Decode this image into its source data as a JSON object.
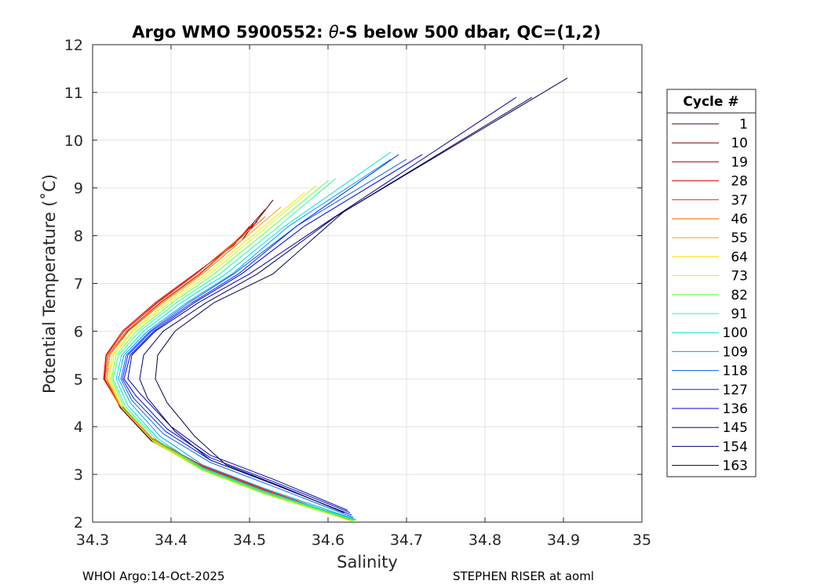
{
  "chart_data": {
    "type": "line",
    "title_prefix": "Argo WMO 5900552: ",
    "title_symbol": "θ",
    "title_suffix": "-S below 500 dbar,  QC=(1,2)",
    "xlabel": "Salinity",
    "ylabel": "Potential Temperature (˚C)",
    "xlim": [
      34.3,
      35.0
    ],
    "ylim": [
      2,
      12
    ],
    "xticks": [
      "34.3",
      "34.4",
      "34.5",
      "34.6",
      "34.7",
      "34.8",
      "34.9",
      "35"
    ],
    "yticks": [
      "2",
      "3",
      "4",
      "5",
      "6",
      "7",
      "8",
      "9",
      "10",
      "11",
      "12"
    ],
    "grid": true,
    "legend_title": "Cycle #",
    "legend_position": "right",
    "series": [
      {
        "name": "1",
        "color": "#5a0000",
        "values": [
          [
            34.634,
            2.05
          ],
          [
            34.52,
            2.6
          ],
          [
            34.44,
            3.1
          ],
          [
            34.375,
            3.7
          ],
          [
            34.335,
            4.4
          ],
          [
            34.318,
            5.0
          ],
          [
            34.322,
            5.5
          ],
          [
            34.345,
            6.0
          ],
          [
            34.39,
            6.6
          ],
          [
            34.44,
            7.2
          ],
          [
            34.49,
            7.9
          ],
          [
            34.53,
            8.75
          ]
        ]
      },
      {
        "name": "10",
        "color": "#820000",
        "values": [
          [
            34.632,
            2.04
          ],
          [
            34.52,
            2.62
          ],
          [
            34.44,
            3.12
          ],
          [
            34.375,
            3.72
          ],
          [
            34.335,
            4.42
          ],
          [
            34.316,
            5.0
          ],
          [
            34.32,
            5.5
          ],
          [
            34.343,
            6.0
          ],
          [
            34.387,
            6.6
          ],
          [
            34.437,
            7.2
          ],
          [
            34.485,
            7.9
          ],
          [
            34.52,
            8.55
          ]
        ]
      },
      {
        "name": "19",
        "color": "#b40000",
        "values": [
          [
            34.63,
            2.05
          ],
          [
            34.52,
            2.65
          ],
          [
            34.44,
            3.15
          ],
          [
            34.375,
            3.75
          ],
          [
            34.334,
            4.45
          ],
          [
            34.315,
            5.0
          ],
          [
            34.318,
            5.5
          ],
          [
            34.34,
            6.0
          ],
          [
            34.383,
            6.6
          ],
          [
            34.432,
            7.2
          ],
          [
            34.48,
            7.85
          ],
          [
            34.51,
            8.3
          ]
        ]
      },
      {
        "name": "28",
        "color": "#e00000",
        "values": [
          [
            34.628,
            2.06
          ],
          [
            34.52,
            2.68
          ],
          [
            34.44,
            3.18
          ],
          [
            34.372,
            3.8
          ],
          [
            34.333,
            4.5
          ],
          [
            34.314,
            5.0
          ],
          [
            34.317,
            5.5
          ],
          [
            34.338,
            6.0
          ],
          [
            34.38,
            6.6
          ],
          [
            34.43,
            7.2
          ],
          [
            34.48,
            7.8
          ],
          [
            34.5,
            8.2
          ]
        ]
      },
      {
        "name": "37",
        "color": "#ff2000",
        "values": [
          [
            34.627,
            2.05
          ],
          [
            34.52,
            2.66
          ],
          [
            34.44,
            3.16
          ],
          [
            34.374,
            3.78
          ],
          [
            34.333,
            4.48
          ],
          [
            34.314,
            5.0
          ],
          [
            34.318,
            5.5
          ],
          [
            34.34,
            6.0
          ],
          [
            34.382,
            6.6
          ],
          [
            34.432,
            7.2
          ],
          [
            34.48,
            7.85
          ],
          [
            34.505,
            8.25
          ]
        ]
      },
      {
        "name": "46",
        "color": "#ff6000",
        "values": [
          [
            34.626,
            2.04
          ],
          [
            34.52,
            2.64
          ],
          [
            34.44,
            3.14
          ],
          [
            34.375,
            3.76
          ],
          [
            34.334,
            4.46
          ],
          [
            34.316,
            5.0
          ],
          [
            34.32,
            5.5
          ],
          [
            34.343,
            6.0
          ],
          [
            34.386,
            6.6
          ],
          [
            34.436,
            7.2
          ],
          [
            34.485,
            7.9
          ],
          [
            34.52,
            8.4
          ]
        ]
      },
      {
        "name": "55",
        "color": "#ffa000",
        "values": [
          [
            34.628,
            2.03
          ],
          [
            34.52,
            2.62
          ],
          [
            34.44,
            3.12
          ],
          [
            34.376,
            3.72
          ],
          [
            34.336,
            4.42
          ],
          [
            34.318,
            5.0
          ],
          [
            34.322,
            5.5
          ],
          [
            34.346,
            6.0
          ],
          [
            34.39,
            6.6
          ],
          [
            34.44,
            7.2
          ],
          [
            34.49,
            7.9
          ],
          [
            34.54,
            8.6
          ]
        ]
      },
      {
        "name": "64",
        "color": "#ffe000",
        "values": [
          [
            34.63,
            2.02
          ],
          [
            34.52,
            2.6
          ],
          [
            34.44,
            3.1
          ],
          [
            34.377,
            3.7
          ],
          [
            34.337,
            4.4
          ],
          [
            34.32,
            5.0
          ],
          [
            34.325,
            5.5
          ],
          [
            34.35,
            6.0
          ],
          [
            34.394,
            6.6
          ],
          [
            34.445,
            7.2
          ],
          [
            34.5,
            7.95
          ],
          [
            34.57,
            8.9
          ]
        ]
      },
      {
        "name": "73",
        "color": "#c0ff20",
        "values": [
          [
            34.632,
            2.02
          ],
          [
            34.52,
            2.58
          ],
          [
            34.44,
            3.08
          ],
          [
            34.378,
            3.68
          ],
          [
            34.338,
            4.38
          ],
          [
            34.322,
            5.0
          ],
          [
            34.327,
            5.5
          ],
          [
            34.352,
            6.0
          ],
          [
            34.398,
            6.6
          ],
          [
            34.45,
            7.2
          ],
          [
            34.505,
            7.95
          ],
          [
            34.585,
            9.05
          ]
        ]
      },
      {
        "name": "82",
        "color": "#60ff40",
        "values": [
          [
            34.634,
            2.03
          ],
          [
            34.52,
            2.6
          ],
          [
            34.44,
            3.1
          ],
          [
            34.38,
            3.7
          ],
          [
            34.34,
            4.4
          ],
          [
            34.324,
            5.0
          ],
          [
            34.33,
            5.5
          ],
          [
            34.356,
            6.0
          ],
          [
            34.402,
            6.6
          ],
          [
            34.455,
            7.2
          ],
          [
            34.515,
            8.0
          ],
          [
            34.6,
            9.15
          ]
        ]
      },
      {
        "name": "91",
        "color": "#20ffa0",
        "values": [
          [
            34.635,
            2.04
          ],
          [
            34.52,
            2.62
          ],
          [
            34.44,
            3.12
          ],
          [
            34.382,
            3.72
          ],
          [
            34.342,
            4.42
          ],
          [
            34.326,
            5.0
          ],
          [
            34.333,
            5.5
          ],
          [
            34.36,
            6.0
          ],
          [
            34.407,
            6.6
          ],
          [
            34.462,
            7.2
          ],
          [
            34.53,
            8.1
          ],
          [
            34.61,
            9.2
          ]
        ]
      },
      {
        "name": "100",
        "color": "#00e0e0",
        "values": [
          [
            34.636,
            2.05
          ],
          [
            34.52,
            2.64
          ],
          [
            34.44,
            3.14
          ],
          [
            34.384,
            3.74
          ],
          [
            34.345,
            4.44
          ],
          [
            34.33,
            5.0
          ],
          [
            34.337,
            5.5
          ],
          [
            34.365,
            6.0
          ],
          [
            34.413,
            6.6
          ],
          [
            34.47,
            7.2
          ],
          [
            34.545,
            8.2
          ],
          [
            34.68,
            9.75
          ]
        ]
      },
      {
        "name": "109",
        "color": "#00a0ff",
        "values": [
          [
            34.633,
            2.07
          ],
          [
            34.52,
            2.7
          ],
          [
            34.44,
            3.2
          ],
          [
            34.386,
            3.8
          ],
          [
            34.348,
            4.5
          ],
          [
            34.333,
            5.0
          ],
          [
            34.34,
            5.5
          ],
          [
            34.37,
            6.0
          ],
          [
            34.42,
            6.6
          ],
          [
            34.478,
            7.2
          ],
          [
            34.55,
            8.2
          ],
          [
            34.68,
            9.6
          ]
        ]
      },
      {
        "name": "118",
        "color": "#0060ff",
        "values": [
          [
            34.632,
            2.1
          ],
          [
            34.53,
            2.75
          ],
          [
            34.45,
            3.25
          ],
          [
            34.39,
            3.85
          ],
          [
            34.35,
            4.55
          ],
          [
            34.336,
            5.0
          ],
          [
            34.343,
            5.5
          ],
          [
            34.373,
            6.0
          ],
          [
            34.423,
            6.6
          ],
          [
            34.48,
            7.2
          ],
          [
            34.56,
            8.2
          ],
          [
            34.7,
            9.6
          ]
        ]
      },
      {
        "name": "127",
        "color": "#0020ff",
        "values": [
          [
            34.63,
            2.15
          ],
          [
            34.53,
            2.8
          ],
          [
            34.45,
            3.3
          ],
          [
            34.393,
            3.9
          ],
          [
            34.352,
            4.6
          ],
          [
            34.338,
            5.0
          ],
          [
            34.345,
            5.5
          ],
          [
            34.375,
            6.0
          ],
          [
            34.427,
            6.6
          ],
          [
            34.486,
            7.2
          ],
          [
            34.56,
            8.2
          ],
          [
            34.69,
            9.7
          ]
        ]
      },
      {
        "name": "136",
        "color": "#0000e0",
        "values": [
          [
            34.628,
            2.2
          ],
          [
            34.53,
            2.85
          ],
          [
            34.45,
            3.35
          ],
          [
            34.395,
            3.95
          ],
          [
            34.355,
            4.65
          ],
          [
            34.34,
            5.0
          ],
          [
            34.348,
            5.5
          ],
          [
            34.378,
            6.0
          ],
          [
            34.43,
            6.6
          ],
          [
            34.49,
            7.2
          ],
          [
            34.57,
            8.2
          ],
          [
            34.72,
            9.7
          ]
        ]
      },
      {
        "name": "145",
        "color": "#0000a0",
        "values": [
          [
            34.625,
            2.25
          ],
          [
            34.53,
            2.9
          ],
          [
            34.45,
            3.4
          ],
          [
            34.4,
            4.0
          ],
          [
            34.36,
            4.7
          ],
          [
            34.345,
            5.0
          ],
          [
            34.35,
            5.5
          ],
          [
            34.38,
            6.0
          ],
          [
            34.435,
            6.6
          ],
          [
            34.5,
            7.2
          ],
          [
            34.6,
            8.3
          ],
          [
            34.84,
            10.9
          ]
        ]
      },
      {
        "name": "154",
        "color": "#000070",
        "values": [
          [
            34.622,
            2.2
          ],
          [
            34.53,
            2.8
          ],
          [
            34.45,
            3.3
          ],
          [
            34.405,
            3.9
          ],
          [
            34.37,
            4.6
          ],
          [
            34.36,
            5.0
          ],
          [
            34.365,
            5.5
          ],
          [
            34.39,
            6.0
          ],
          [
            34.445,
            6.6
          ],
          [
            34.51,
            7.2
          ],
          [
            34.61,
            8.4
          ],
          [
            34.86,
            10.9
          ]
        ]
      },
      {
        "name": "163",
        "color": "#000040",
        "values": [
          [
            34.62,
            2.2
          ],
          [
            34.54,
            2.75
          ],
          [
            34.47,
            3.2
          ],
          [
            34.43,
            3.8
          ],
          [
            34.395,
            4.5
          ],
          [
            34.38,
            5.0
          ],
          [
            34.383,
            5.5
          ],
          [
            34.405,
            6.0
          ],
          [
            34.455,
            6.6
          ],
          [
            34.53,
            7.2
          ],
          [
            34.62,
            8.5
          ],
          [
            34.905,
            11.3
          ]
        ]
      }
    ]
  },
  "footer": {
    "left": "WHOI Argo:14-Oct-2025",
    "right": "STEPHEN RISER at aoml"
  }
}
